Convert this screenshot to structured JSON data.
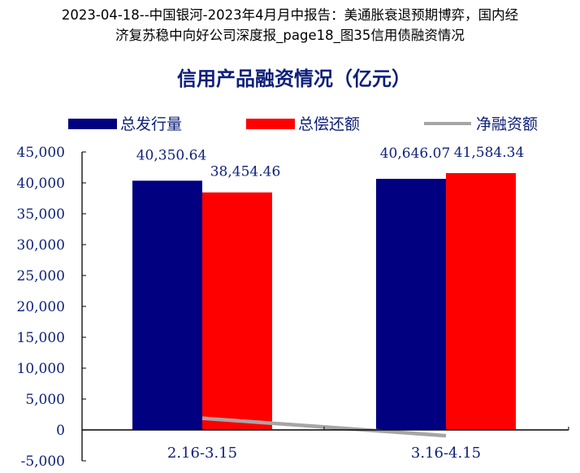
{
  "header": {
    "line1": "2023-04-18--中国银河-2023年4月月中报告：美通胀衰退预期博弈，国内经",
    "line2": "济复苏稳中向好公司深度报_page18_图35信用债融资情况"
  },
  "colors": {
    "issuance": "#000080",
    "repayment": "#ff0000",
    "net": "#a6a6a6",
    "text": "#0d1f7a",
    "axis": "#000000"
  },
  "chart_data": {
    "type": "bar",
    "title": "信用产品融资情况（亿元）",
    "categories": [
      "2.16-3.15",
      "3.16-4.15"
    ],
    "series": [
      {
        "name": "总发行量",
        "kind": "bar",
        "values": [
          40350.64,
          40646.07
        ]
      },
      {
        "name": "总偿还额",
        "kind": "bar",
        "values": [
          38454.46,
          41584.34
        ]
      },
      {
        "name": "净融资额",
        "kind": "line",
        "values": [
          1896.18,
          -938.27
        ]
      }
    ],
    "data_labels": [
      [
        "40,350.64",
        "38,454.46"
      ],
      [
        "40,646.07",
        "41,584.34"
      ]
    ],
    "yticks": [
      "45,000",
      "40,000",
      "35,000",
      "30,000",
      "25,000",
      "20,000",
      "15,000",
      "10,000",
      "5,000",
      "0",
      "-5,000"
    ],
    "ylim": [
      -5000,
      45000
    ],
    "grid": false,
    "legend_position": "top"
  }
}
